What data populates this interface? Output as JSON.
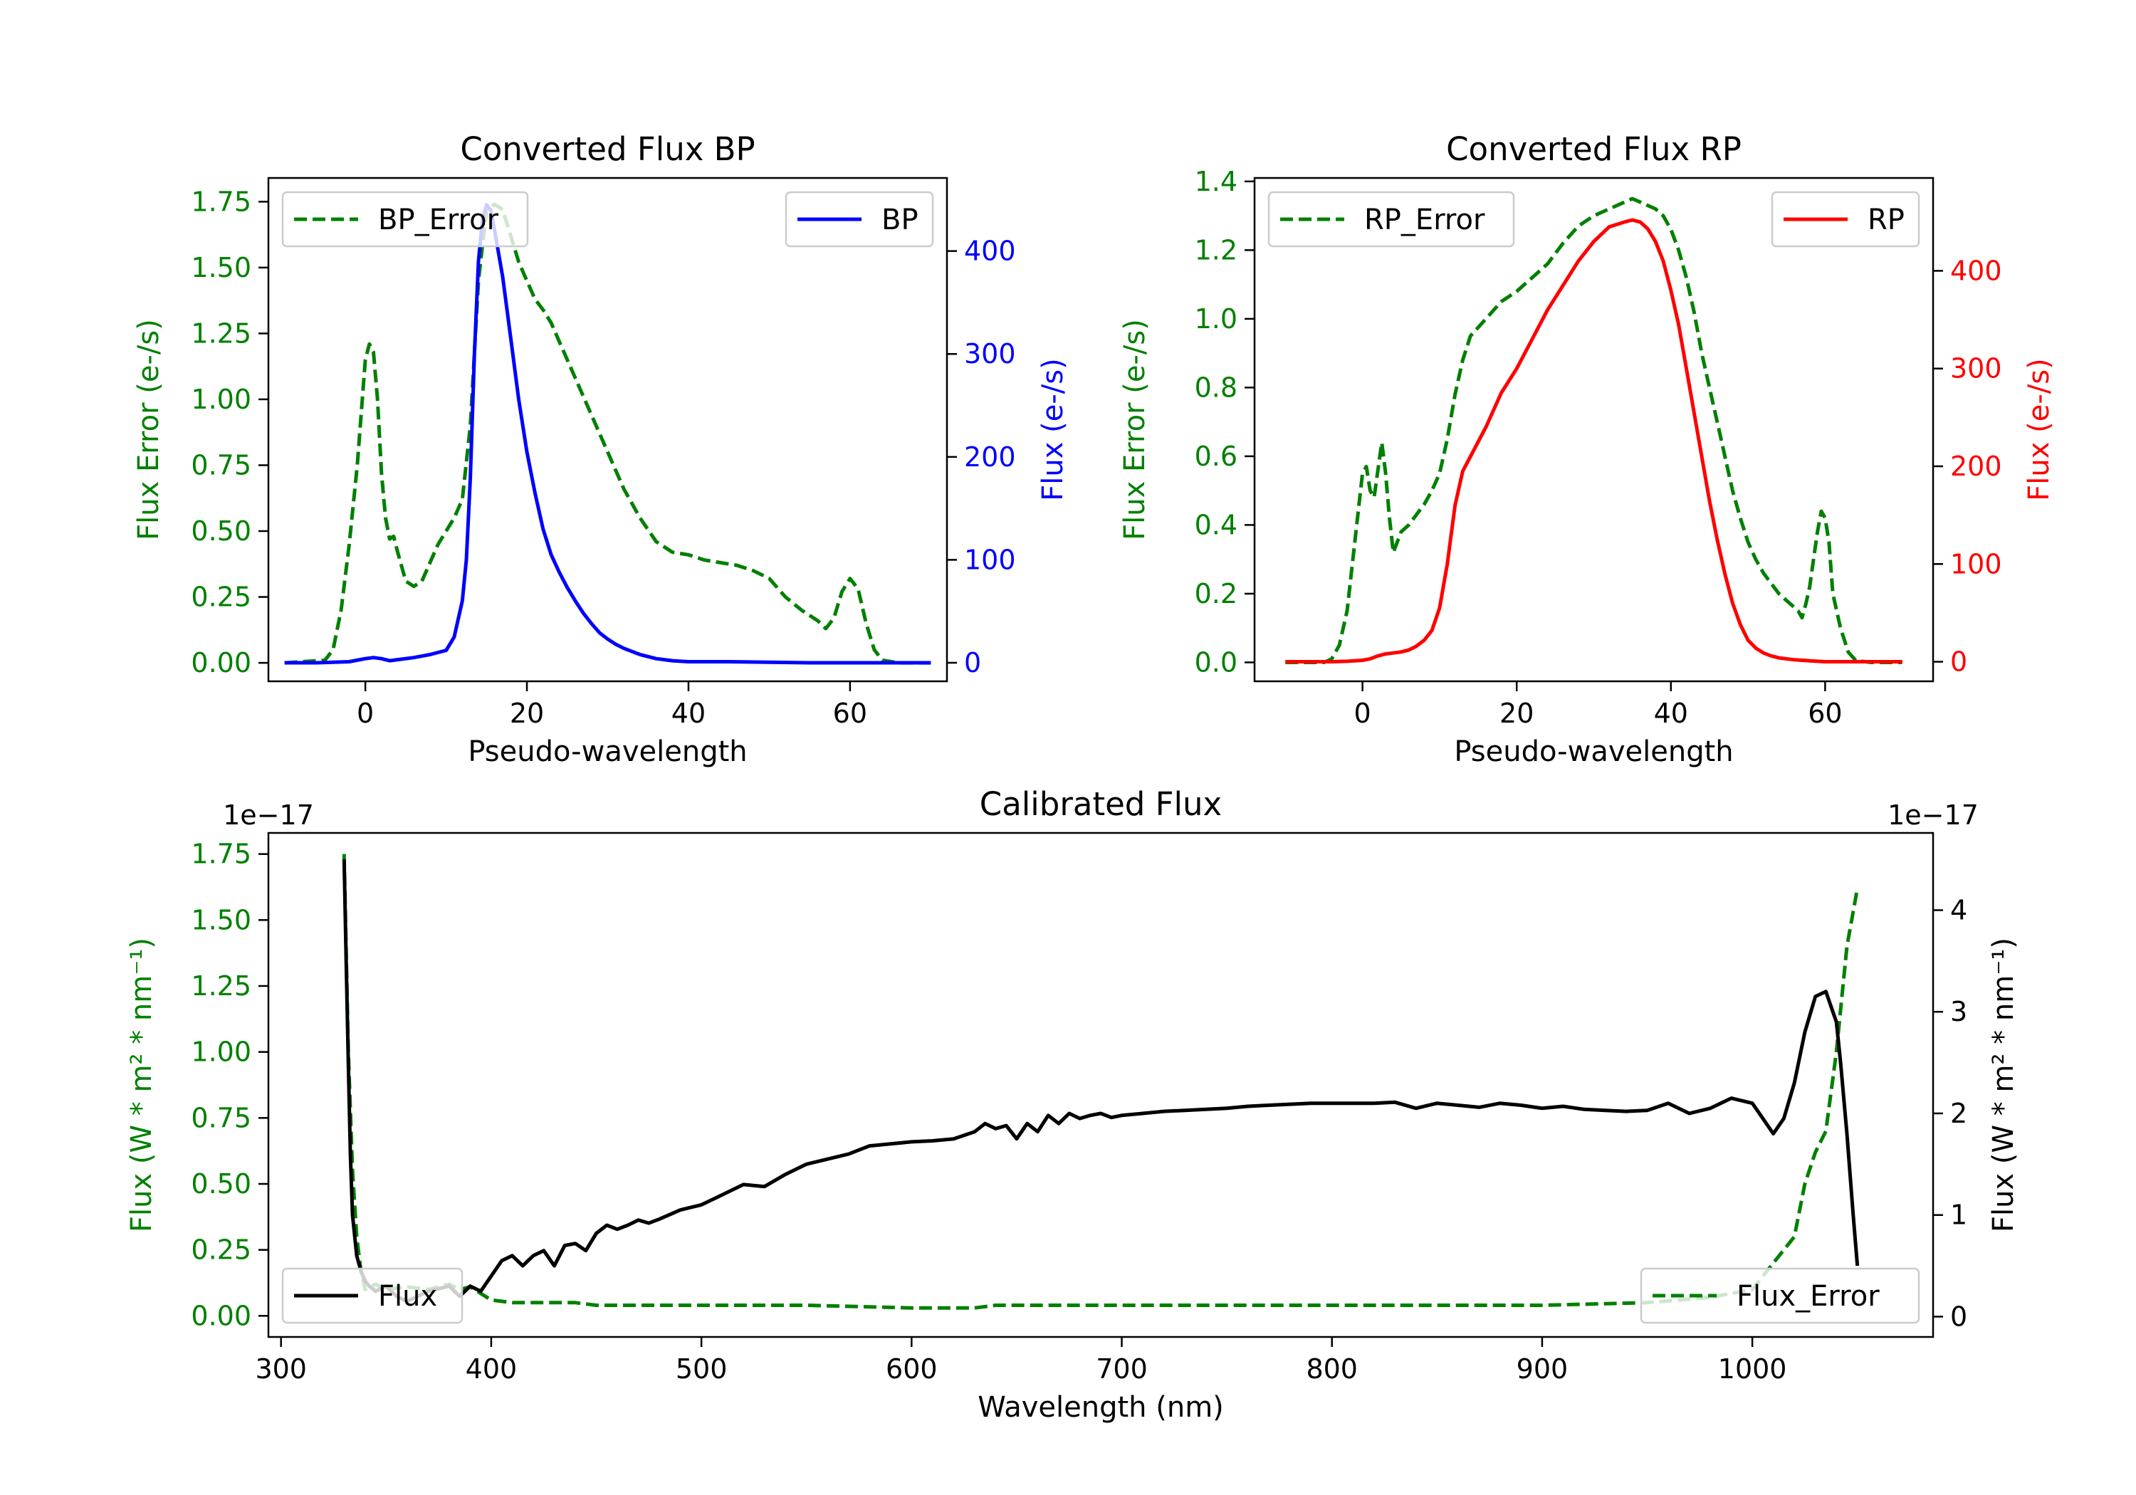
{
  "colors": {
    "green": "#008000",
    "blue": "#0000ff",
    "red": "#ff0000",
    "black": "#000000"
  },
  "chart_data": [
    {
      "id": "bp",
      "type": "line",
      "title": "Converted Flux BP",
      "xlabel": "Pseudo-wavelength",
      "ylabel_left": "Flux Error (e-/s)",
      "ylabel_right": "Flux (e-/s)",
      "xlim": [
        -12,
        72
      ],
      "ylim_left": [
        -0.07,
        1.84
      ],
      "ylim_right": [
        -18,
        471
      ],
      "xticks": [
        0,
        20,
        40,
        60
      ],
      "xtick_labels": [
        "0",
        "20",
        "40",
        "60"
      ],
      "yticks_left": [
        0,
        0.25,
        0.5,
        0.75,
        1.0,
        1.25,
        1.5,
        1.75
      ],
      "ytick_labels_left": [
        "0.00",
        "0.25",
        "0.50",
        "0.75",
        "1.00",
        "1.25",
        "1.50",
        "1.75"
      ],
      "yticks_right": [
        0,
        100,
        200,
        300,
        400
      ],
      "ytick_labels_right": [
        "0",
        "100",
        "200",
        "300",
        "400"
      ],
      "legend_left": {
        "label": "BP_Error",
        "style": "dashed",
        "color": "#008000",
        "position": "upper left"
      },
      "legend_right": {
        "label": "BP",
        "style": "solid",
        "color": "#0000ff",
        "position": "upper right"
      },
      "series": [
        {
          "name": "BP_Error",
          "axis": "left",
          "color": "#008000",
          "dash": true,
          "x": [
            -10,
            -5,
            -4,
            -3,
            -2,
            -1,
            0,
            0.5,
            1,
            1.5,
            2,
            2.5,
            3,
            3.5,
            4,
            5,
            6,
            7,
            8,
            9,
            10,
            11,
            12,
            13,
            14,
            15,
            16,
            17,
            18,
            19,
            20,
            21,
            22,
            23,
            24,
            26,
            28,
            30,
            32,
            34,
            36,
            38,
            40,
            42,
            44,
            46,
            48,
            50,
            52,
            54,
            56,
            57,
            58,
            59,
            60,
            61,
            62,
            63,
            64,
            66,
            68,
            70
          ],
          "values": [
            0,
            0.01,
            0.05,
            0.2,
            0.45,
            0.75,
            1.15,
            1.21,
            1.18,
            1.0,
            0.72,
            0.55,
            0.47,
            0.48,
            0.42,
            0.31,
            0.29,
            0.31,
            0.38,
            0.45,
            0.5,
            0.55,
            0.62,
            0.9,
            1.45,
            1.72,
            1.74,
            1.72,
            1.62,
            1.52,
            1.45,
            1.38,
            1.34,
            1.29,
            1.22,
            1.08,
            0.94,
            0.8,
            0.66,
            0.55,
            0.46,
            0.42,
            0.41,
            0.39,
            0.38,
            0.37,
            0.35,
            0.32,
            0.25,
            0.2,
            0.16,
            0.13,
            0.17,
            0.27,
            0.32,
            0.28,
            0.15,
            0.05,
            0.01,
            0,
            0,
            0
          ]
        },
        {
          "name": "BP",
          "axis": "right",
          "color": "#0000ff",
          "dash": false,
          "x": [
            -10,
            -6,
            -4,
            -2,
            0,
            1,
            2,
            3,
            4,
            6,
            8,
            9,
            10,
            11,
            12,
            12.5,
            13,
            13.5,
            14,
            14.5,
            15,
            15.5,
            16,
            17,
            18,
            19,
            20,
            21,
            22,
            23,
            24,
            25,
            26,
            27,
            28,
            29,
            30,
            31,
            32,
            33,
            34,
            35,
            36,
            37,
            38,
            40,
            45,
            50,
            55,
            60,
            65,
            70
          ],
          "values": [
            0,
            0,
            0.5,
            1,
            4,
            5,
            4,
            2,
            3,
            5,
            8,
            10,
            12,
            25,
            60,
            100,
            180,
            300,
            390,
            430,
            445,
            440,
            420,
            375,
            315,
            255,
            205,
            165,
            130,
            105,
            88,
            73,
            60,
            48,
            38,
            29,
            23,
            18,
            14,
            11,
            8,
            6,
            4,
            3,
            2,
            1,
            1,
            0.5,
            0,
            0,
            0,
            0
          ]
        }
      ]
    },
    {
      "id": "rp",
      "type": "line",
      "title": "Converted Flux RP",
      "xlabel": "Pseudo-wavelength",
      "ylabel_left": "Flux Error (e-/s)",
      "ylabel_right": "Flux (e-/s)",
      "xlim": [
        -14,
        74
      ],
      "ylim_left": [
        -0.055,
        1.41
      ],
      "ylim_right": [
        -20,
        495
      ],
      "xticks": [
        0,
        20,
        40,
        60
      ],
      "xtick_labels": [
        "0",
        "20",
        "40",
        "60"
      ],
      "yticks_left": [
        0,
        0.2,
        0.4,
        0.6,
        0.8,
        1.0,
        1.2,
        1.4
      ],
      "ytick_labels_left": [
        "0.0",
        "0.2",
        "0.4",
        "0.6",
        "0.8",
        "1.0",
        "1.2",
        "1.4"
      ],
      "yticks_right": [
        0,
        100,
        200,
        300,
        400
      ],
      "ytick_labels_right": [
        "0",
        "100",
        "200",
        "300",
        "400"
      ],
      "legend_left": {
        "label": "RP_Error",
        "style": "dashed",
        "color": "#008000",
        "position": "upper left"
      },
      "legend_right": {
        "label": "RP",
        "style": "solid",
        "color": "#ff0000",
        "position": "upper right"
      },
      "series": [
        {
          "name": "RP_Error",
          "axis": "left",
          "color": "#008000",
          "dash": true,
          "x": [
            -10,
            -5,
            -4,
            -3,
            -2,
            -1,
            0,
            0.5,
            1,
            1.5,
            2,
            2.5,
            3,
            3.5,
            4,
            5,
            6,
            7,
            8,
            9,
            10,
            11,
            12,
            13,
            14,
            16,
            18,
            20,
            22,
            24,
            26,
            28,
            30,
            32,
            34,
            35,
            36,
            37,
            38,
            39,
            40,
            41,
            42,
            43,
            44,
            45,
            46,
            47,
            48,
            49,
            50,
            51,
            52,
            53,
            54,
            55,
            56,
            56.5,
            57,
            57.5,
            58,
            58.5,
            59,
            59.5,
            60,
            60.5,
            61,
            62,
            63,
            64,
            66,
            68,
            70
          ],
          "values": [
            0,
            0,
            0.01,
            0.05,
            0.15,
            0.35,
            0.55,
            0.57,
            0.5,
            0.48,
            0.56,
            0.64,
            0.55,
            0.42,
            0.32,
            0.38,
            0.4,
            0.43,
            0.46,
            0.5,
            0.55,
            0.65,
            0.78,
            0.88,
            0.95,
            1.0,
            1.05,
            1.08,
            1.12,
            1.16,
            1.22,
            1.27,
            1.3,
            1.32,
            1.34,
            1.35,
            1.34,
            1.33,
            1.32,
            1.3,
            1.26,
            1.2,
            1.12,
            1.02,
            0.9,
            0.8,
            0.7,
            0.6,
            0.5,
            0.42,
            0.35,
            0.3,
            0.26,
            0.23,
            0.2,
            0.18,
            0.16,
            0.15,
            0.13,
            0.17,
            0.22,
            0.3,
            0.38,
            0.44,
            0.42,
            0.35,
            0.2,
            0.1,
            0.03,
            0.005,
            0,
            0,
            0
          ]
        },
        {
          "name": "RP",
          "axis": "right",
          "color": "#ff0000",
          "dash": false,
          "x": [
            -10,
            -4,
            -2,
            0,
            1,
            2,
            3,
            4,
            5,
            6,
            7,
            8,
            9,
            10,
            11,
            12,
            13,
            14,
            16,
            18,
            20,
            22,
            24,
            26,
            28,
            30,
            32,
            34,
            35,
            36,
            37,
            38,
            39,
            40,
            41,
            42,
            43,
            44,
            45,
            46,
            47,
            48,
            49,
            50,
            51,
            52,
            53,
            54,
            56,
            58,
            60,
            62,
            65,
            70
          ],
          "values": [
            0,
            0,
            0.5,
            1.5,
            3,
            6,
            8,
            9,
            10,
            12,
            16,
            22,
            32,
            55,
            100,
            160,
            195,
            210,
            240,
            275,
            300,
            330,
            360,
            385,
            410,
            430,
            445,
            450,
            452,
            450,
            443,
            430,
            410,
            380,
            345,
            300,
            255,
            210,
            165,
            125,
            90,
            60,
            38,
            22,
            14,
            9,
            6,
            4,
            2,
            1,
            0,
            0,
            0,
            0
          ]
        }
      ]
    },
    {
      "id": "calibrated",
      "type": "line",
      "title": "Calibrated Flux",
      "xlabel": "Wavelength (nm)",
      "ylabel_left": "Flux (W * m² * nm⁻¹)",
      "ylabel_right": "Flux (W * m² * nm⁻¹)",
      "offset_left": "1e−17",
      "offset_right": "1e−17",
      "xlim": [
        294,
        1086
      ],
      "ylim_left": [
        -0.08,
        1.83
      ],
      "ylim_right": [
        -0.2,
        4.76
      ],
      "xticks": [
        300,
        400,
        500,
        600,
        700,
        800,
        900,
        1000
      ],
      "xtick_labels": [
        "300",
        "400",
        "500",
        "600",
        "700",
        "800",
        "900",
        "1000"
      ],
      "yticks_left": [
        0,
        0.25,
        0.5,
        0.75,
        1.0,
        1.25,
        1.5,
        1.75
      ],
      "ytick_labels_left": [
        "0.00",
        "0.25",
        "0.50",
        "0.75",
        "1.00",
        "1.25",
        "1.50",
        "1.75"
      ],
      "yticks_right": [
        0,
        1,
        2,
        3,
        4
      ],
      "ytick_labels_right": [
        "0",
        "1",
        "2",
        "3",
        "4"
      ],
      "legend_left": {
        "label": "Flux",
        "style": "solid",
        "color": "#000000",
        "position": "lower left"
      },
      "legend_right": {
        "label": "Flux_Error",
        "style": "dashed",
        "color": "#008000",
        "position": "lower right"
      },
      "series": [
        {
          "name": "Flux_Error",
          "axis": "left",
          "color": "#008000",
          "dash": true,
          "x": [
            330,
            332,
            334,
            336,
            338,
            340,
            345,
            350,
            360,
            370,
            380,
            385,
            390,
            400,
            410,
            420,
            430,
            440,
            450,
            500,
            550,
            600,
            630,
            640,
            650,
            700,
            750,
            800,
            850,
            900,
            950,
            980,
            1000,
            1010,
            1020,
            1025,
            1030,
            1035,
            1040,
            1045,
            1050
          ],
          "values": [
            1.75,
            1.0,
            0.55,
            0.3,
            0.17,
            0.1,
            0.12,
            0.1,
            0.11,
            0.1,
            0.12,
            0.1,
            0.11,
            0.06,
            0.05,
            0.05,
            0.05,
            0.05,
            0.04,
            0.04,
            0.04,
            0.03,
            0.03,
            0.04,
            0.04,
            0.04,
            0.04,
            0.04,
            0.04,
            0.04,
            0.05,
            0.07,
            0.1,
            0.2,
            0.3,
            0.5,
            0.62,
            0.7,
            1.0,
            1.4,
            1.62
          ]
        },
        {
          "name": "Flux",
          "axis": "right",
          "color": "#000000",
          "dash": false,
          "x": [
            330,
            331,
            332,
            333,
            334,
            336,
            338,
            340,
            342,
            345,
            350,
            355,
            360,
            370,
            380,
            385,
            390,
            395,
            400,
            405,
            410,
            415,
            420,
            425,
            430,
            435,
            440,
            445,
            450,
            455,
            460,
            465,
            470,
            475,
            480,
            490,
            500,
            510,
            520,
            530,
            540,
            550,
            560,
            570,
            580,
            590,
            600,
            610,
            620,
            630,
            635,
            640,
            645,
            650,
            655,
            660,
            665,
            670,
            675,
            680,
            685,
            690,
            695,
            700,
            710,
            720,
            730,
            740,
            750,
            760,
            770,
            780,
            790,
            800,
            810,
            820,
            830,
            840,
            850,
            860,
            870,
            880,
            890,
            900,
            910,
            920,
            930,
            940,
            950,
            960,
            970,
            980,
            990,
            1000,
            1005,
            1010,
            1015,
            1020,
            1025,
            1030,
            1035,
            1040,
            1042,
            1045,
            1048,
            1050
          ],
          "values": [
            4.5,
            3.5,
            2.5,
            1.6,
            1.0,
            0.6,
            0.45,
            0.35,
            0.3,
            0.25,
            0.3,
            0.2,
            0.15,
            0.25,
            0.3,
            0.2,
            0.3,
            0.25,
            0.4,
            0.55,
            0.6,
            0.5,
            0.6,
            0.65,
            0.5,
            0.7,
            0.72,
            0.65,
            0.82,
            0.9,
            0.86,
            0.9,
            0.95,
            0.92,
            0.96,
            1.05,
            1.1,
            1.2,
            1.3,
            1.28,
            1.4,
            1.5,
            1.55,
            1.6,
            1.68,
            1.7,
            1.72,
            1.73,
            1.75,
            1.82,
            1.9,
            1.85,
            1.88,
            1.75,
            1.9,
            1.82,
            1.98,
            1.9,
            2.0,
            1.95,
            1.98,
            2.0,
            1.96,
            1.98,
            2.0,
            2.02,
            2.03,
            2.04,
            2.05,
            2.07,
            2.08,
            2.09,
            2.1,
            2.1,
            2.1,
            2.1,
            2.11,
            2.05,
            2.1,
            2.08,
            2.06,
            2.1,
            2.08,
            2.05,
            2.07,
            2.04,
            2.03,
            2.02,
            2.03,
            2.1,
            2.0,
            2.05,
            2.15,
            2.1,
            1.95,
            1.8,
            1.95,
            2.3,
            2.8,
            3.15,
            3.2,
            2.9,
            2.5,
            1.8,
            1.0,
            0.5
          ]
        }
      ]
    }
  ]
}
